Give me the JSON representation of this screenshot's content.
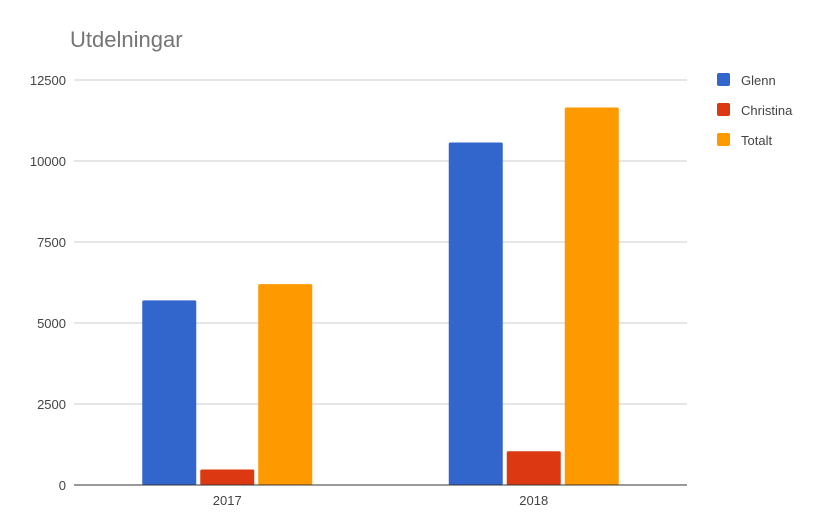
{
  "chart_data": {
    "type": "bar",
    "title": "Utdelningar",
    "xlabel": "",
    "ylabel": "",
    "categories": [
      "2017",
      "2018"
    ],
    "series": [
      {
        "name": "Glenn",
        "color": "#3366cc",
        "values": [
          5700,
          10570
        ]
      },
      {
        "name": "Christina",
        "color": "#dc3912",
        "values": [
          480,
          1040
        ]
      },
      {
        "name": "Totalt",
        "color": "#ff9900",
        "values": [
          6200,
          11650
        ]
      }
    ],
    "ylim": [
      0,
      12500
    ],
    "yticks": [
      "0",
      "2500",
      "5000",
      "7500",
      "10000",
      "12500"
    ],
    "grid": true,
    "legend_position": "right"
  }
}
